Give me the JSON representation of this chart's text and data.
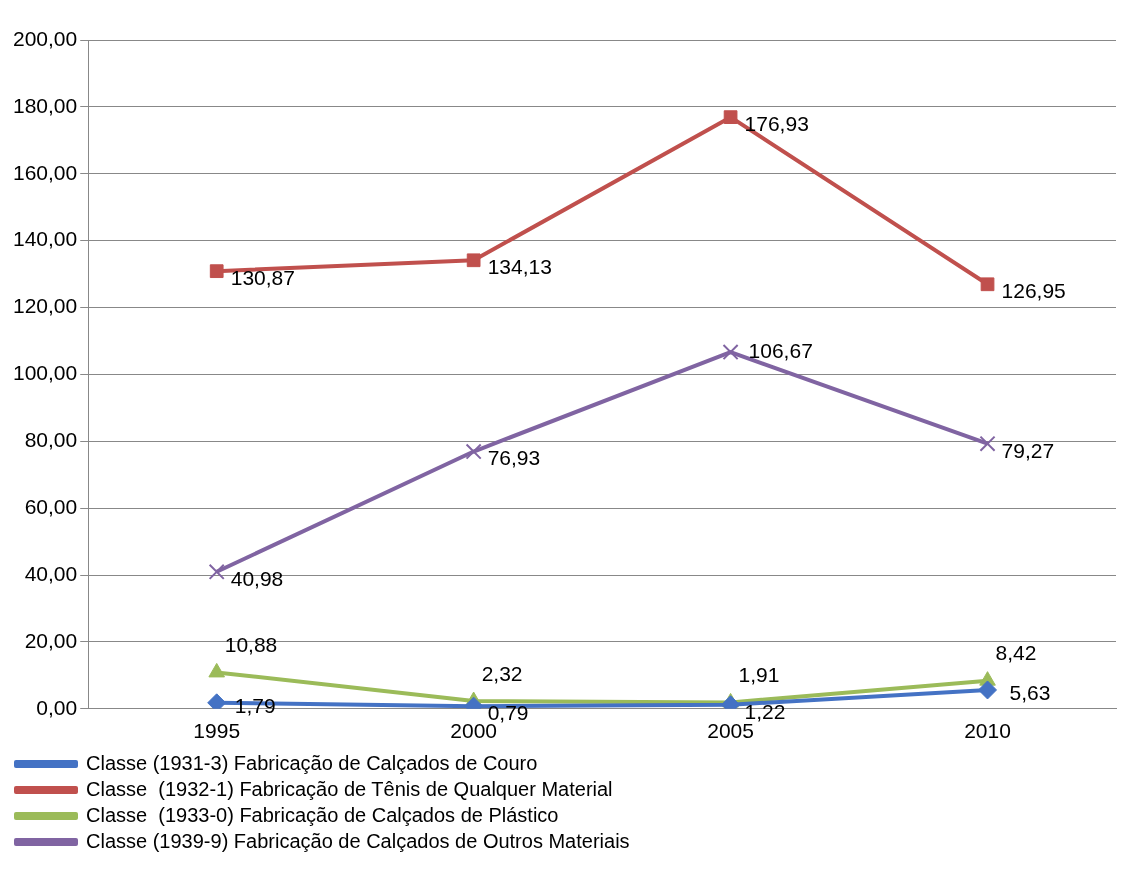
{
  "chart_data": {
    "type": "line",
    "categories": [
      "1995",
      "2000",
      "2005",
      "2010"
    ],
    "ylim": [
      0,
      200
    ],
    "yticks": [
      {
        "value": 0,
        "label": "0,00"
      },
      {
        "value": 20,
        "label": "20,00"
      },
      {
        "value": 40,
        "label": "40,00"
      },
      {
        "value": 60,
        "label": "60,00"
      },
      {
        "value": 80,
        "label": "80,00"
      },
      {
        "value": 100,
        "label": "100,00"
      },
      {
        "value": 120,
        "label": "120,00"
      },
      {
        "value": 140,
        "label": "140,00"
      },
      {
        "value": 160,
        "label": "160,00"
      },
      {
        "value": 180,
        "label": "180,00"
      },
      {
        "value": 200,
        "label": "200,00"
      }
    ],
    "grid": "y",
    "legend": "bottom",
    "series": [
      {
        "name": "Classe (1931-3) Fabricação de Calçados de Couro",
        "color": "#4472c4",
        "marker": "diamond",
        "values": [
          1.79,
          0.79,
          1.22,
          5.63
        ],
        "value_labels": [
          "1,79",
          "0,79",
          "1,22",
          "5,63"
        ]
      },
      {
        "name": "Classe  (1932-1) Fabricação de Tênis de Qualquer Material",
        "color": "#c0504d",
        "marker": "square",
        "values": [
          130.87,
          134.13,
          176.93,
          126.95
        ],
        "value_labels": [
          "130,87",
          "134,13",
          "176,93",
          "126,95"
        ]
      },
      {
        "name": "Classe  (1933-0) Fabricação de Calçados de Plástico",
        "color": "#9bbb59",
        "marker": "triangle",
        "values": [
          10.88,
          2.32,
          1.91,
          8.42
        ],
        "value_labels": [
          "10,88",
          "2,32",
          "1,91",
          "8,42"
        ]
      },
      {
        "name": "Classe (1939-9) Fabricação de Calçados de Outros Materiais",
        "color": "#8064a2",
        "marker": "cross",
        "values": [
          40.98,
          76.93,
          106.67,
          79.27
        ],
        "value_labels": [
          "40,98",
          "76,93",
          "106,67",
          "79,27"
        ]
      }
    ]
  }
}
